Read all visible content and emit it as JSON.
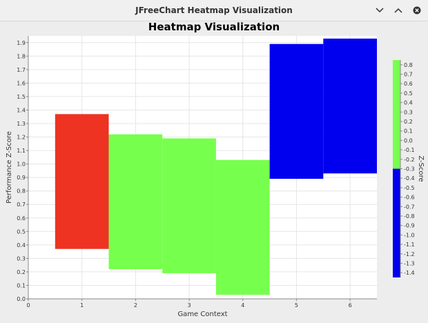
{
  "window": {
    "title": "JFreeChart Heatmap Visualization",
    "buttons": {
      "minimize": "chevron-down-icon",
      "maximize": "chevron-up-icon",
      "close": "close-icon"
    }
  },
  "colors": {
    "plot_bg": "#ffffff",
    "grid": "#e6e6e6",
    "high": "#77ff4d",
    "mid": "#ee3322",
    "low": "#0000ee"
  },
  "chart_data": {
    "type": "heatmap",
    "title": "Heatmap Visualization",
    "xlabel": "Game Context",
    "ylabel": "Performance Z-Score",
    "xlim": [
      0,
      6.5
    ],
    "ylim": [
      0,
      1.95
    ],
    "x_ticks": [
      "0",
      "1",
      "2",
      "3",
      "4",
      "5",
      "6"
    ],
    "y_ticks": [
      "0.0",
      "0.1",
      "0.2",
      "0.3",
      "0.4",
      "0.5",
      "0.6",
      "0.7",
      "0.8",
      "0.9",
      "1.0",
      "1.1",
      "1.2",
      "1.3",
      "1.4",
      "1.5",
      "1.6",
      "1.7",
      "1.8",
      "1.9"
    ],
    "grid": true,
    "cells": [
      {
        "x": 1,
        "y_low": 0.37,
        "y_high": 1.37,
        "z": -0.3,
        "color": "#ee3322"
      },
      {
        "x": 2,
        "y_low": 0.22,
        "y_high": 1.22,
        "z": 0.3,
        "color": "#77ff4d"
      },
      {
        "x": 3,
        "y_low": 0.19,
        "y_high": 1.19,
        "z": 0.3,
        "color": "#77ff4d"
      },
      {
        "x": 4,
        "y_low": 0.03,
        "y_high": 1.03,
        "z": 0.3,
        "color": "#77ff4d"
      },
      {
        "x": 5,
        "y_low": 0.89,
        "y_high": 1.89,
        "z": -1.0,
        "color": "#0000ee"
      },
      {
        "x": 6,
        "y_low": 0.93,
        "y_high": 1.93,
        "z": -1.0,
        "color": "#0000ee"
      }
    ],
    "colorbar": {
      "label": "Z-Score",
      "zlim": [
        -1.45,
        0.85
      ],
      "ticks": [
        "0.8",
        "0.7",
        "0.6",
        "0.5",
        "0.4",
        "0.3",
        "0.2",
        "0.1",
        "0.0",
        "-0.1",
        "-0.2",
        "-0.3",
        "-0.4",
        "-0.5",
        "-0.6",
        "-0.7",
        "-0.8",
        "-0.9",
        "-1.0",
        "-1.1",
        "-1.2",
        "-1.3",
        "-1.4"
      ],
      "bands": [
        {
          "from": -0.3,
          "to": 0.85,
          "color": "#77ff4d"
        },
        {
          "from": -1.45,
          "to": -0.3,
          "color": "#0000ee"
        }
      ]
    }
  }
}
